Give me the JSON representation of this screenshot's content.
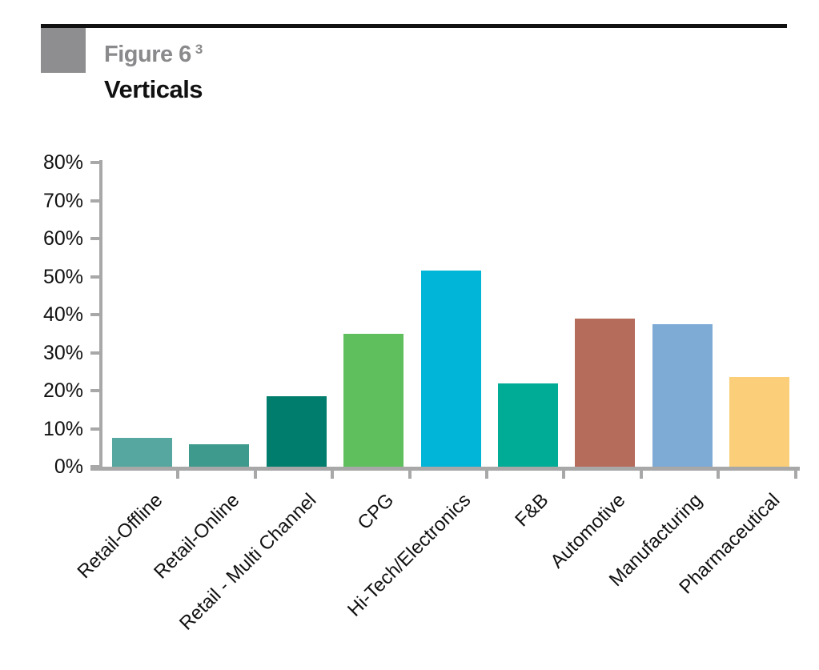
{
  "figure": {
    "label": "Figure 6",
    "footnote_marker": "3",
    "title": "Verticals"
  },
  "colors": {
    "header_rule": "#111111",
    "figure_square": "#8e8e90",
    "figure_label_text": "#8a8a8c",
    "title_text": "#111111",
    "axis": "#a8a8a8",
    "tick_text": "#111111"
  },
  "chart_data": {
    "type": "bar",
    "title": "Verticals",
    "xlabel": "",
    "ylabel": "",
    "ylim": [
      0,
      80
    ],
    "ytick_step": 10,
    "ytick_labels": [
      "0%",
      "10%",
      "20%",
      "30%",
      "40%",
      "50%",
      "60%",
      "70%",
      "80%"
    ],
    "grid": false,
    "legend": false,
    "x_label_rotation_deg": 45,
    "categories": [
      "Retail-Offline",
      "Retail-Online",
      "Retail - Multi Channel",
      "CPG",
      "Hi-Tech/Electronics",
      "F&B",
      "Automotive",
      "Manufacturing",
      "Pharmaceutical"
    ],
    "values": [
      7.5,
      6,
      18.5,
      35,
      51.5,
      22,
      39,
      37.5,
      23.5
    ],
    "bar_colors": [
      "#55A79F",
      "#3E9A8D",
      "#007D6C",
      "#60BF5D",
      "#00B5D8",
      "#00AC96",
      "#B66C5B",
      "#7EAAD6",
      "#FBCF79"
    ]
  }
}
